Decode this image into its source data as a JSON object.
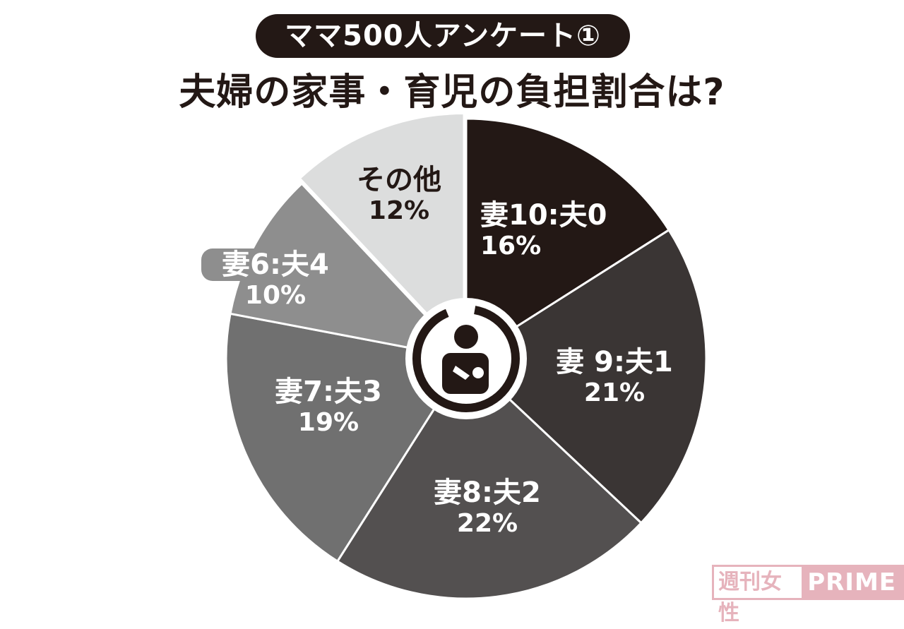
{
  "header": {
    "badge": "ママ500人アンケート①",
    "title": "夫婦の家事・育児の負担割合は?"
  },
  "watermark": {
    "jp": "週刊女性",
    "en": "PRIME"
  },
  "center_icon": "breastfeeding-mother-icon",
  "chart_data": {
    "type": "pie",
    "title": "夫婦の家事・育児の負担割合は?",
    "subtitle": "ママ500人アンケート①",
    "start_angle": "12 o'clock, clockwise",
    "categories": [
      "妻10:夫0",
      "妻9:夫1",
      "妻8:夫2",
      "妻7:夫3",
      "妻6:夫4",
      "その他"
    ],
    "values": [
      16,
      21,
      22,
      19,
      10,
      12
    ],
    "unit": "%",
    "colors": [
      "#231815",
      "#3a3534",
      "#535050",
      "#707070",
      "#8e8e8e",
      "#dcdddd"
    ],
    "labels": [
      {
        "name": "妻10:夫0",
        "pct": "16%"
      },
      {
        "name": "妻 9:夫1",
        "pct": "21%"
      },
      {
        "name": "妻8:夫2",
        "pct": "22%"
      },
      {
        "name": "妻7:夫3",
        "pct": "19%"
      },
      {
        "name": "妻6:夫4",
        "pct": "10%"
      },
      {
        "name": "その他",
        "pct": "12%"
      }
    ]
  }
}
